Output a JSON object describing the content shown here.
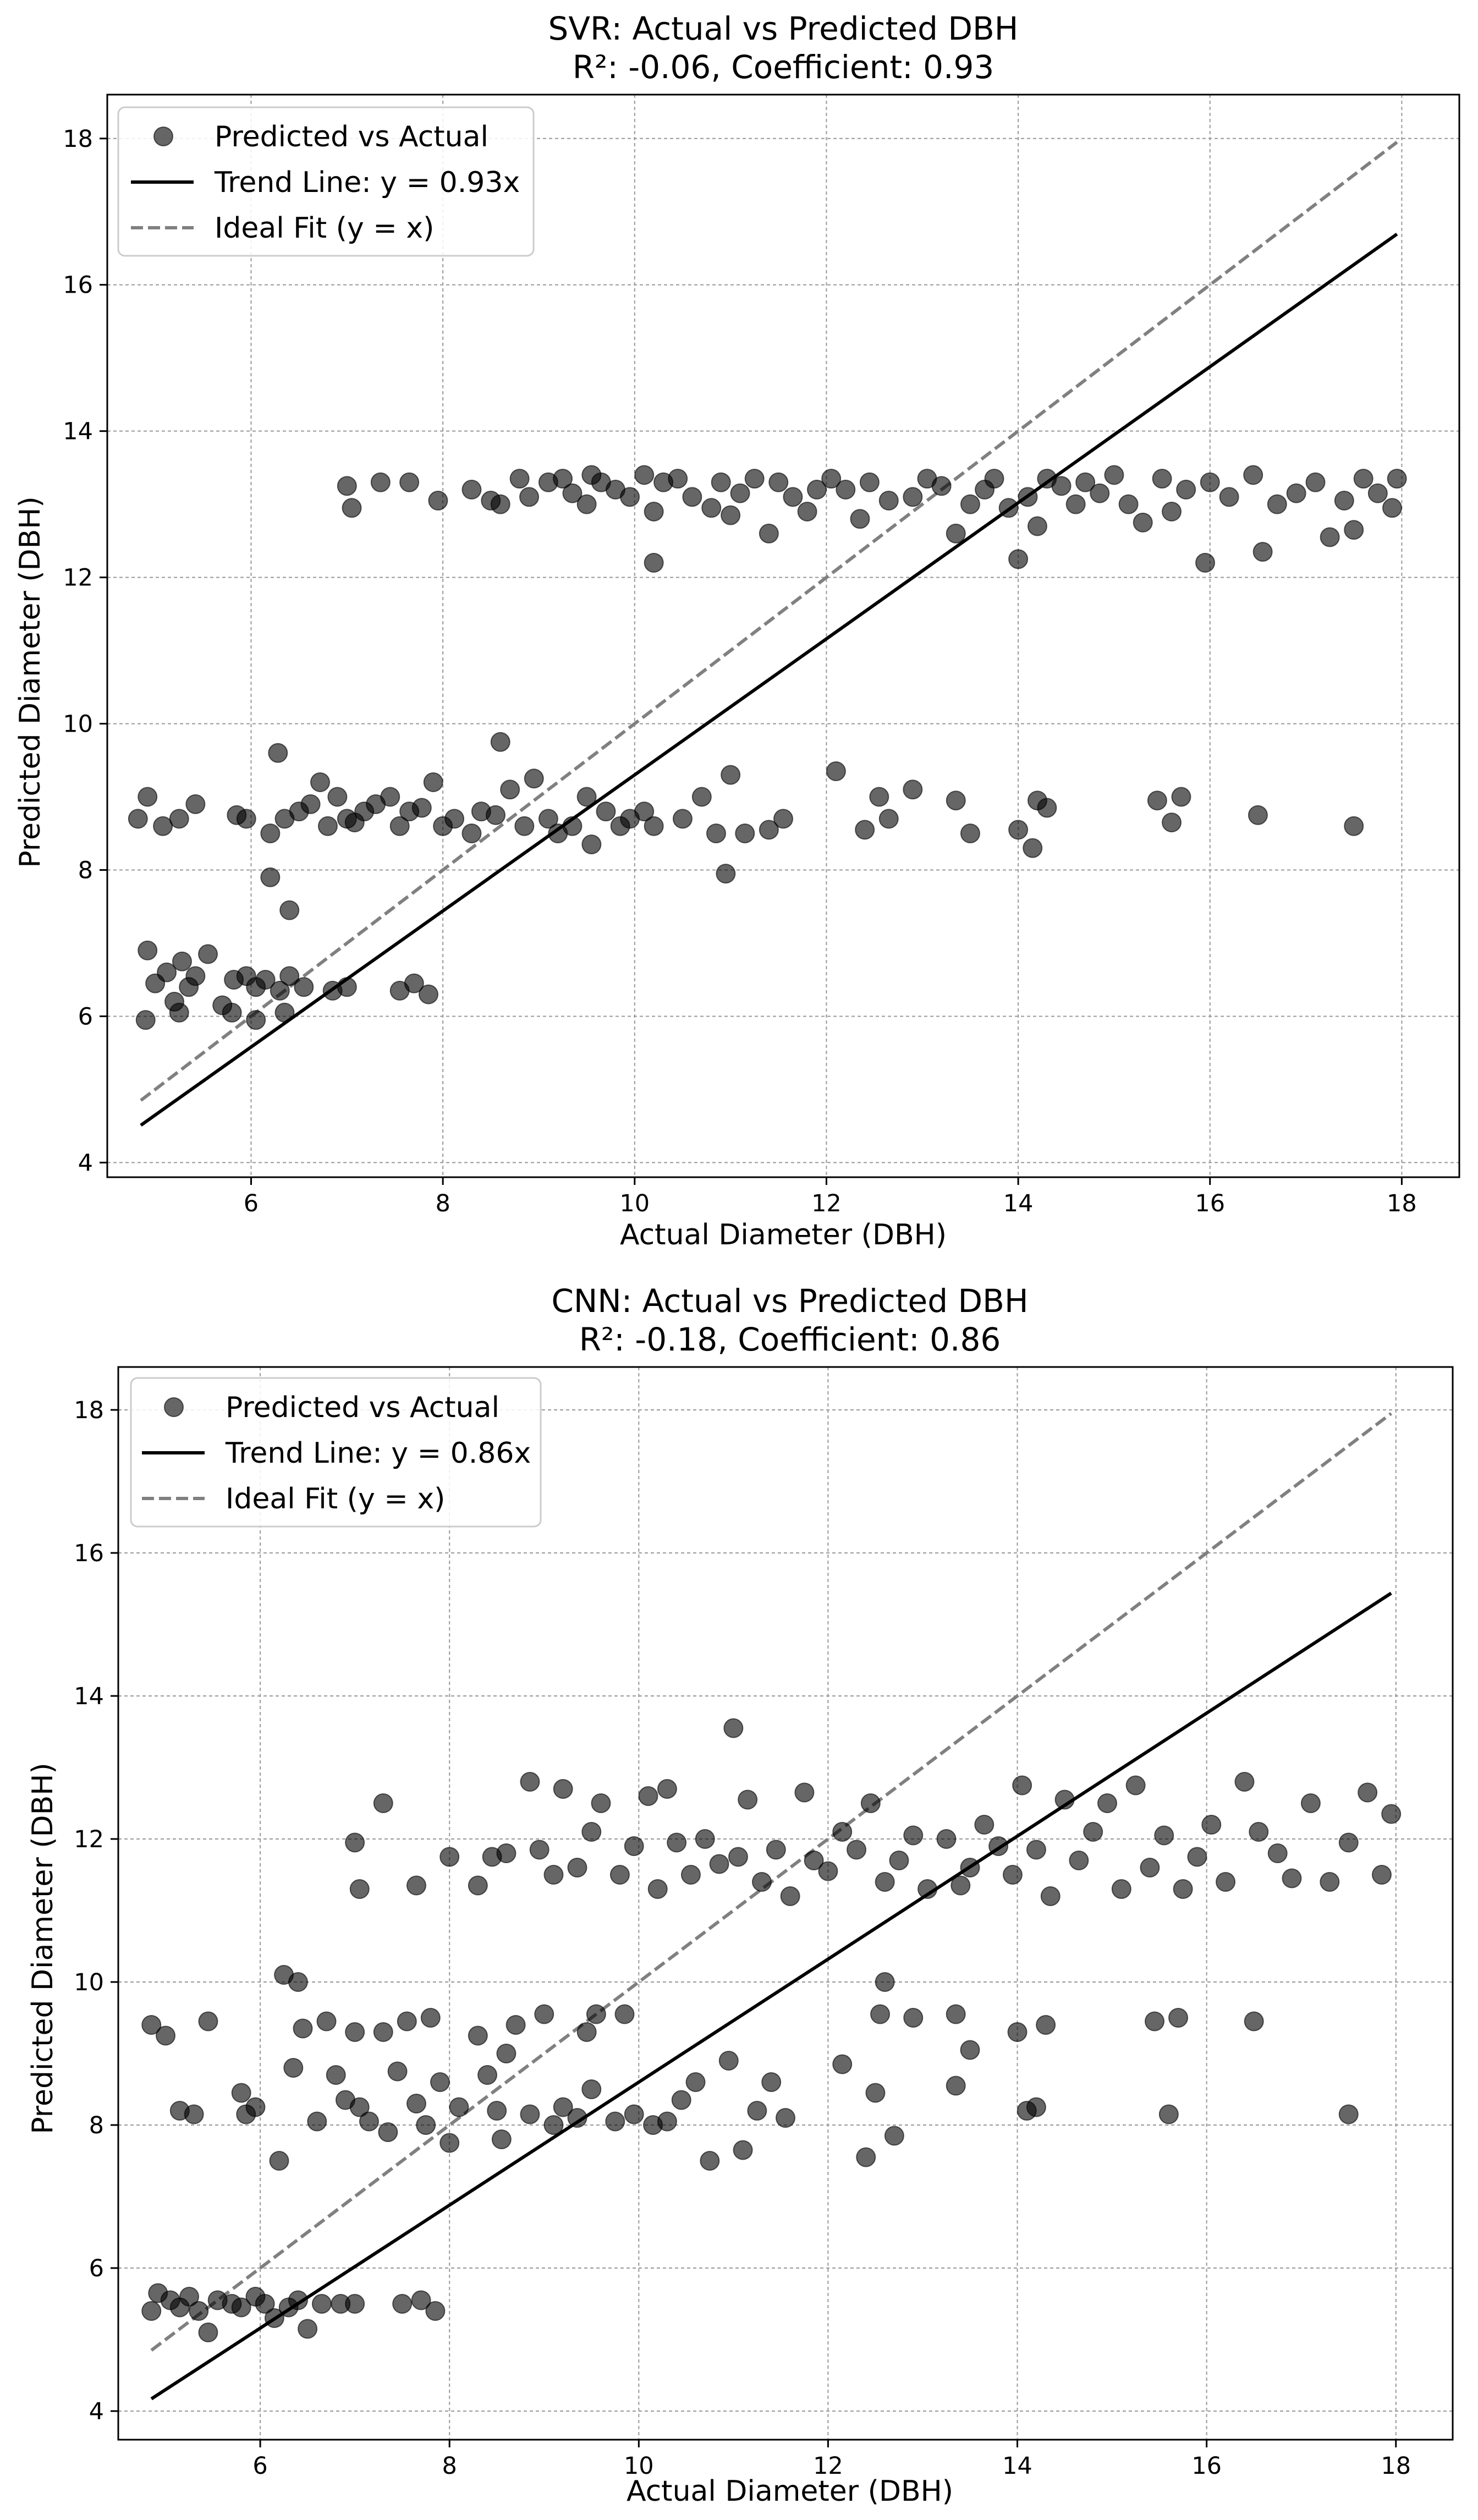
{
  "chart_data": [
    {
      "type": "scatter",
      "title_line1": "SVR: Actual vs Predicted DBH",
      "title_line2": "R²: -0.06, Coefficient: 0.93",
      "xlabel": "Actual Diameter (DBH)",
      "ylabel": "Predicted Diameter (DBH)",
      "xlim": [
        4.5,
        18.6
      ],
      "ylim": [
        3.8,
        18.6
      ],
      "xticks": [
        6,
        8,
        10,
        12,
        14,
        16,
        18
      ],
      "yticks": [
        4,
        6,
        8,
        10,
        12,
        14,
        16,
        18
      ],
      "grid": true,
      "legend_position": "top-left",
      "legend": {
        "scatter_label": "Predicted vs Actual",
        "trend_label": "Trend Line: y = 0.93x",
        "ideal_label": "Ideal Fit (y = x)"
      },
      "trend": {
        "slope": 0.93,
        "x_start": 4.85,
        "x_end": 17.95
      },
      "ideal": {
        "x_start": 4.85,
        "x_end": 17.95
      },
      "points": [
        [
          4.82,
          8.7
        ],
        [
          4.92,
          9.0
        ],
        [
          5.08,
          8.6
        ],
        [
          5.25,
          8.7
        ],
        [
          5.42,
          8.9
        ],
        [
          5.85,
          8.75
        ],
        [
          5.95,
          8.7
        ],
        [
          6.2,
          8.5
        ],
        [
          6.28,
          9.6
        ],
        [
          6.35,
          8.7
        ],
        [
          6.5,
          8.8
        ],
        [
          6.62,
          8.9
        ],
        [
          6.72,
          9.2
        ],
        [
          6.8,
          8.6
        ],
        [
          6.9,
          9.0
        ],
        [
          7.0,
          8.7
        ],
        [
          7.08,
          8.65
        ],
        [
          7.18,
          8.8
        ],
        [
          7.3,
          8.9
        ],
        [
          7.45,
          9.0
        ],
        [
          7.55,
          8.6
        ],
        [
          7.65,
          8.8
        ],
        [
          7.78,
          8.85
        ],
        [
          7.9,
          9.2
        ],
        [
          8.0,
          8.6
        ],
        [
          8.12,
          8.7
        ],
        [
          8.3,
          8.5
        ],
        [
          8.4,
          8.8
        ],
        [
          8.55,
          8.75
        ],
        [
          8.6,
          9.75
        ],
        [
          8.7,
          9.1
        ],
        [
          8.85,
          8.6
        ],
        [
          8.95,
          9.25
        ],
        [
          9.1,
          8.7
        ],
        [
          9.2,
          8.5
        ],
        [
          9.35,
          8.6
        ],
        [
          9.5,
          9.0
        ],
        [
          9.55,
          8.35
        ],
        [
          9.7,
          8.8
        ],
        [
          9.85,
          8.6
        ],
        [
          9.95,
          8.7
        ],
        [
          10.1,
          8.8
        ],
        [
          10.2,
          8.6
        ],
        [
          10.5,
          8.7
        ],
        [
          10.7,
          9.0
        ],
        [
          10.85,
          8.5
        ],
        [
          11.0,
          9.3
        ],
        [
          11.15,
          8.5
        ],
        [
          11.4,
          8.55
        ],
        [
          11.55,
          8.7
        ],
        [
          12.1,
          9.35
        ],
        [
          12.4,
          8.55
        ],
        [
          12.55,
          9.0
        ],
        [
          12.65,
          8.7
        ],
        [
          12.9,
          9.1
        ],
        [
          13.35,
          8.95
        ],
        [
          13.5,
          8.5
        ],
        [
          14.0,
          8.55
        ],
        [
          14.15,
          8.3
        ],
        [
          14.2,
          8.95
        ],
        [
          14.3,
          8.85
        ],
        [
          15.45,
          8.95
        ],
        [
          15.6,
          8.65
        ],
        [
          15.7,
          9.0
        ],
        [
          16.5,
          8.75
        ],
        [
          17.5,
          8.6
        ],
        [
          10.95,
          7.95
        ],
        [
          6.2,
          7.9
        ],
        [
          6.4,
          7.45
        ],
        [
          4.92,
          6.9
        ],
        [
          5.0,
          6.45
        ],
        [
          5.12,
          6.6
        ],
        [
          5.2,
          6.2
        ],
        [
          5.28,
          6.75
        ],
        [
          5.35,
          6.4
        ],
        [
          5.42,
          6.55
        ],
        [
          5.55,
          6.85
        ],
        [
          5.7,
          6.15
        ],
        [
          5.82,
          6.5
        ],
        [
          5.95,
          6.55
        ],
        [
          6.05,
          6.4
        ],
        [
          6.15,
          6.5
        ],
        [
          6.3,
          6.35
        ],
        [
          6.4,
          6.55
        ],
        [
          6.55,
          6.4
        ],
        [
          6.85,
          6.35
        ],
        [
          7.0,
          6.4
        ],
        [
          7.55,
          6.35
        ],
        [
          7.7,
          6.45
        ],
        [
          7.85,
          6.3
        ],
        [
          4.9,
          5.95
        ],
        [
          5.25,
          6.05
        ],
        [
          5.8,
          6.05
        ],
        [
          6.05,
          5.95
        ],
        [
          6.35,
          6.05
        ],
        [
          7.0,
          13.25
        ],
        [
          7.05,
          12.95
        ],
        [
          7.35,
          13.3
        ],
        [
          7.65,
          13.3
        ],
        [
          7.95,
          13.05
        ],
        [
          8.3,
          13.2
        ],
        [
          8.5,
          13.05
        ],
        [
          8.6,
          13.0
        ],
        [
          8.8,
          13.35
        ],
        [
          8.9,
          13.1
        ],
        [
          9.1,
          13.3
        ],
        [
          9.25,
          13.35
        ],
        [
          9.35,
          13.15
        ],
        [
          9.5,
          13.0
        ],
        [
          9.55,
          13.4
        ],
        [
          9.65,
          13.3
        ],
        [
          9.8,
          13.2
        ],
        [
          9.95,
          13.1
        ],
        [
          10.1,
          13.4
        ],
        [
          10.2,
          12.9
        ],
        [
          10.2,
          12.2
        ],
        [
          10.3,
          13.3
        ],
        [
          10.45,
          13.35
        ],
        [
          10.6,
          13.1
        ],
        [
          10.8,
          12.95
        ],
        [
          10.9,
          13.3
        ],
        [
          11.0,
          12.85
        ],
        [
          11.1,
          13.15
        ],
        [
          11.25,
          13.35
        ],
        [
          11.4,
          12.6
        ],
        [
          11.5,
          13.3
        ],
        [
          11.65,
          13.1
        ],
        [
          11.8,
          12.9
        ],
        [
          11.9,
          13.2
        ],
        [
          12.05,
          13.35
        ],
        [
          12.2,
          13.2
        ],
        [
          12.35,
          12.8
        ],
        [
          12.45,
          13.3
        ],
        [
          12.65,
          13.05
        ],
        [
          12.9,
          13.1
        ],
        [
          13.05,
          13.35
        ],
        [
          13.2,
          13.25
        ],
        [
          13.35,
          12.6
        ],
        [
          13.5,
          13.0
        ],
        [
          13.65,
          13.2
        ],
        [
          13.75,
          13.35
        ],
        [
          13.9,
          12.95
        ],
        [
          14.0,
          12.25
        ],
        [
          14.1,
          13.1
        ],
        [
          14.2,
          12.7
        ],
        [
          14.3,
          13.35
        ],
        [
          14.45,
          13.25
        ],
        [
          14.6,
          13.0
        ],
        [
          14.7,
          13.3
        ],
        [
          14.85,
          13.15
        ],
        [
          15.0,
          13.4
        ],
        [
          15.15,
          13.0
        ],
        [
          15.3,
          12.75
        ],
        [
          15.5,
          13.35
        ],
        [
          15.6,
          12.9
        ],
        [
          15.75,
          13.2
        ],
        [
          15.95,
          12.2
        ],
        [
          16.0,
          13.3
        ],
        [
          16.2,
          13.1
        ],
        [
          16.45,
          13.4
        ],
        [
          16.55,
          12.35
        ],
        [
          16.7,
          13.0
        ],
        [
          16.9,
          13.15
        ],
        [
          17.1,
          13.3
        ],
        [
          17.25,
          12.55
        ],
        [
          17.4,
          13.05
        ],
        [
          17.5,
          12.65
        ],
        [
          17.6,
          13.35
        ],
        [
          17.75,
          13.15
        ],
        [
          17.9,
          12.95
        ],
        [
          17.95,
          13.35
        ]
      ]
    },
    {
      "type": "scatter",
      "title_line1": "CNN: Actual vs Predicted DBH",
      "title_line2": "R²: -0.18, Coefficient: 0.86",
      "xlabel": "Actual Diameter (DBH)",
      "ylabel": "Predicted Diameter (DBH)",
      "xlim": [
        4.5,
        18.6
      ],
      "ylim": [
        3.6,
        18.6
      ],
      "xticks": [
        6,
        8,
        10,
        12,
        14,
        16,
        18
      ],
      "yticks": [
        4,
        6,
        8,
        10,
        12,
        14,
        16,
        18
      ],
      "grid": true,
      "legend_position": "top-left",
      "legend": {
        "scatter_label": "Predicted vs Actual",
        "trend_label": "Trend Line: y = 0.86x",
        "ideal_label": "Ideal Fit (y = x)"
      },
      "trend": {
        "slope": 0.86,
        "x_start": 4.85,
        "x_end": 17.95
      },
      "ideal": {
        "x_start": 4.85,
        "x_end": 17.95
      },
      "points": [
        [
          4.85,
          9.4
        ],
        [
          5.0,
          9.25
        ],
        [
          5.15,
          8.2
        ],
        [
          5.3,
          8.15
        ],
        [
          5.45,
          9.45
        ],
        [
          5.8,
          8.45
        ],
        [
          5.85,
          8.15
        ],
        [
          5.95,
          8.25
        ],
        [
          6.2,
          7.5
        ],
        [
          6.25,
          10.1
        ],
        [
          6.35,
          8.8
        ],
        [
          6.4,
          10.0
        ],
        [
          6.45,
          9.35
        ],
        [
          6.6,
          8.05
        ],
        [
          6.7,
          9.45
        ],
        [
          6.8,
          8.7
        ],
        [
          6.9,
          8.35
        ],
        [
          7.0,
          9.3
        ],
        [
          7.05,
          8.25
        ],
        [
          7.15,
          8.05
        ],
        [
          7.3,
          9.3
        ],
        [
          7.35,
          7.9
        ],
        [
          7.45,
          8.75
        ],
        [
          7.55,
          9.45
        ],
        [
          7.65,
          8.3
        ],
        [
          7.75,
          8.0
        ],
        [
          7.8,
          9.5
        ],
        [
          7.9,
          8.6
        ],
        [
          8.0,
          7.75
        ],
        [
          8.1,
          8.25
        ],
        [
          8.3,
          9.25
        ],
        [
          8.4,
          8.7
        ],
        [
          8.5,
          8.2
        ],
        [
          8.55,
          7.8
        ],
        [
          8.6,
          9.0
        ],
        [
          8.7,
          9.4
        ],
        [
          8.85,
          8.15
        ],
        [
          9.0,
          9.55
        ],
        [
          9.1,
          8.0
        ],
        [
          9.2,
          8.25
        ],
        [
          9.35,
          8.1
        ],
        [
          9.45,
          9.3
        ],
        [
          9.5,
          8.5
        ],
        [
          9.55,
          9.55
        ],
        [
          9.75,
          8.05
        ],
        [
          9.85,
          9.55
        ],
        [
          9.95,
          8.15
        ],
        [
          10.15,
          8.0
        ],
        [
          10.3,
          8.05
        ],
        [
          10.45,
          8.35
        ],
        [
          10.6,
          8.6
        ],
        [
          10.75,
          7.5
        ],
        [
          10.95,
          8.9
        ],
        [
          11.1,
          7.65
        ],
        [
          11.25,
          8.2
        ],
        [
          11.4,
          8.6
        ],
        [
          11.55,
          8.1
        ],
        [
          12.15,
          8.85
        ],
        [
          12.4,
          7.55
        ],
        [
          12.5,
          8.45
        ],
        [
          12.55,
          9.55
        ],
        [
          12.6,
          10.0
        ],
        [
          12.7,
          7.85
        ],
        [
          12.9,
          9.5
        ],
        [
          13.35,
          9.55
        ],
        [
          13.35,
          8.55
        ],
        [
          13.5,
          9.05
        ],
        [
          14.0,
          9.3
        ],
        [
          14.1,
          8.2
        ],
        [
          14.2,
          8.25
        ],
        [
          14.3,
          9.4
        ],
        [
          15.45,
          9.45
        ],
        [
          15.6,
          8.15
        ],
        [
          15.7,
          9.5
        ],
        [
          16.5,
          9.45
        ],
        [
          17.5,
          8.15
        ],
        [
          4.85,
          5.4
        ],
        [
          4.92,
          5.65
        ],
        [
          5.05,
          5.55
        ],
        [
          5.15,
          5.45
        ],
        [
          5.25,
          5.6
        ],
        [
          5.35,
          5.4
        ],
        [
          5.45,
          5.1
        ],
        [
          5.55,
          5.55
        ],
        [
          5.7,
          5.5
        ],
        [
          5.8,
          5.45
        ],
        [
          5.95,
          5.6
        ],
        [
          6.05,
          5.5
        ],
        [
          6.15,
          5.3
        ],
        [
          6.3,
          5.45
        ],
        [
          6.4,
          5.55
        ],
        [
          6.5,
          5.15
        ],
        [
          6.65,
          5.5
        ],
        [
          6.85,
          5.5
        ],
        [
          7.0,
          5.5
        ],
        [
          7.5,
          5.5
        ],
        [
          7.7,
          5.55
        ],
        [
          7.85,
          5.4
        ],
        [
          7.0,
          11.95
        ],
        [
          7.05,
          11.3
        ],
        [
          7.3,
          12.5
        ],
        [
          7.65,
          11.35
        ],
        [
          8.0,
          11.75
        ],
        [
          8.3,
          11.35
        ],
        [
          8.45,
          11.75
        ],
        [
          8.6,
          11.8
        ],
        [
          8.85,
          12.8
        ],
        [
          8.95,
          11.85
        ],
        [
          9.1,
          11.5
        ],
        [
          9.2,
          12.7
        ],
        [
          9.35,
          11.6
        ],
        [
          9.5,
          12.1
        ],
        [
          9.6,
          12.5
        ],
        [
          9.8,
          11.5
        ],
        [
          9.95,
          11.9
        ],
        [
          10.1,
          12.6
        ],
        [
          10.2,
          11.3
        ],
        [
          10.3,
          12.7
        ],
        [
          10.4,
          11.95
        ],
        [
          10.55,
          11.5
        ],
        [
          10.7,
          12.0
        ],
        [
          10.85,
          11.65
        ],
        [
          11.0,
          13.55
        ],
        [
          11.05,
          11.75
        ],
        [
          11.15,
          12.55
        ],
        [
          11.3,
          11.4
        ],
        [
          11.45,
          11.85
        ],
        [
          11.6,
          11.2
        ],
        [
          11.75,
          12.65
        ],
        [
          11.85,
          11.7
        ],
        [
          12.0,
          11.55
        ],
        [
          12.15,
          12.1
        ],
        [
          12.3,
          11.85
        ],
        [
          12.45,
          12.5
        ],
        [
          12.6,
          11.4
        ],
        [
          12.75,
          11.7
        ],
        [
          12.9,
          12.05
        ],
        [
          13.05,
          11.3
        ],
        [
          13.25,
          12.0
        ],
        [
          13.4,
          11.35
        ],
        [
          13.5,
          11.6
        ],
        [
          13.65,
          12.2
        ],
        [
          13.8,
          11.9
        ],
        [
          13.95,
          11.5
        ],
        [
          14.05,
          12.75
        ],
        [
          14.2,
          11.85
        ],
        [
          14.35,
          11.2
        ],
        [
          14.5,
          12.55
        ],
        [
          14.65,
          11.7
        ],
        [
          14.8,
          12.1
        ],
        [
          14.95,
          12.5
        ],
        [
          15.1,
          11.3
        ],
        [
          15.25,
          12.75
        ],
        [
          15.4,
          11.6
        ],
        [
          15.55,
          12.05
        ],
        [
          15.75,
          11.3
        ],
        [
          15.9,
          11.75
        ],
        [
          16.05,
          12.2
        ],
        [
          16.2,
          11.4
        ],
        [
          16.4,
          12.8
        ],
        [
          16.55,
          12.1
        ],
        [
          16.75,
          11.8
        ],
        [
          16.9,
          11.45
        ],
        [
          17.1,
          12.5
        ],
        [
          17.3,
          11.4
        ],
        [
          17.5,
          11.95
        ],
        [
          17.7,
          12.65
        ],
        [
          17.85,
          11.5
        ],
        [
          17.95,
          12.35
        ]
      ]
    }
  ]
}
